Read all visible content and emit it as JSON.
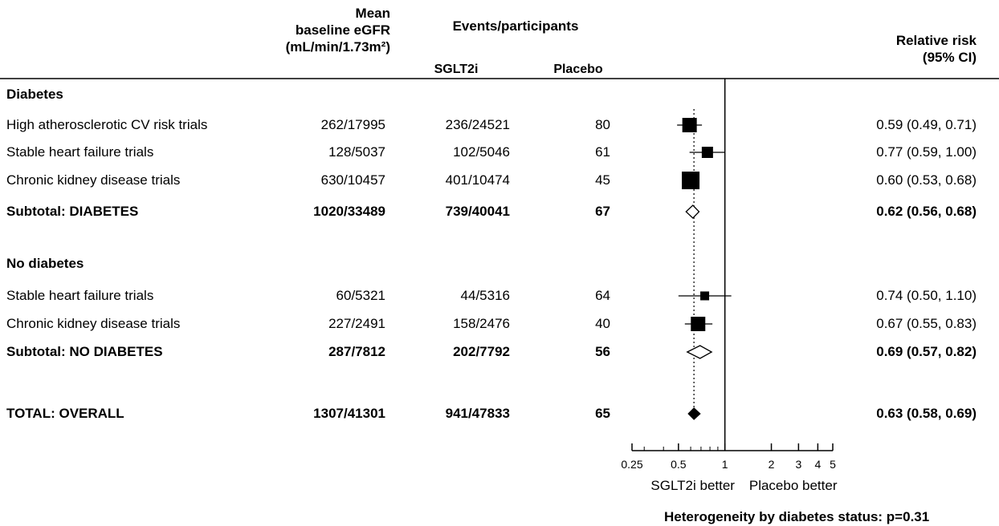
{
  "headers": {
    "egfr": [
      "Mean",
      "baseline eGFR",
      "(mL/min/1.73m²)"
    ],
    "events": "Events/participants",
    "sglt2i": "SGLT2i",
    "placebo": "Placebo",
    "rr": [
      "Relative risk",
      "(95% CI)"
    ]
  },
  "rows": [
    {
      "label": "Diabetes",
      "type": "group",
      "egfr": "",
      "sglt2i": "",
      "placebo": "",
      "ci_text": ""
    },
    {
      "label": "High atherosclerotic CV risk trials",
      "type": "study",
      "egfr": "80",
      "sglt2i": "236/24521",
      "placebo": "262/17995",
      "ci_text": "0.59 (0.49, 0.71)"
    },
    {
      "label": "Stable heart failure trials",
      "type": "study",
      "egfr": "61",
      "sglt2i": "102/5046",
      "placebo": "128/5037",
      "ci_text": "0.77 (0.59, 1.00)"
    },
    {
      "label": "Chronic kidney disease trials",
      "type": "study",
      "egfr": "45",
      "sglt2i": "401/10474",
      "placebo": "630/10457",
      "ci_text": "0.60 (0.53, 0.68)"
    },
    {
      "label": "Subtotal: DIABETES",
      "type": "subtotal",
      "egfr": "67",
      "sglt2i": "739/40041",
      "placebo": "1020/33489",
      "ci_text": "0.62 (0.56, 0.68)"
    },
    {
      "label": "No diabetes",
      "type": "group",
      "egfr": "",
      "sglt2i": "",
      "placebo": "",
      "ci_text": ""
    },
    {
      "label": "Stable heart failure trials",
      "type": "study",
      "egfr": "64",
      "sglt2i": "44/5316",
      "placebo": "60/5321",
      "ci_text": "0.74 (0.50, 1.10)"
    },
    {
      "label": "Chronic kidney disease trials",
      "type": "study",
      "egfr": "40",
      "sglt2i": "158/2476",
      "placebo": "227/2491",
      "ci_text": "0.67 (0.55, 0.83)"
    },
    {
      "label": "Subtotal: NO DIABETES",
      "type": "subtotal",
      "egfr": "56",
      "sglt2i": "202/7792",
      "placebo": "287/7812",
      "ci_text": "0.69 (0.57, 0.82)"
    },
    {
      "label": "TOTAL: OVERALL",
      "type": "total",
      "egfr": "65",
      "sglt2i": "941/47833",
      "placebo": "1307/41301",
      "ci_text": "0.63 (0.58, 0.69)"
    }
  ],
  "chart_data": {
    "type": "forest",
    "x_scale": "log",
    "xlim": [
      0.25,
      5
    ],
    "xticks": [
      0.25,
      0.5,
      1,
      2,
      3,
      4,
      5
    ],
    "xtick_labels": [
      "0.25",
      "0.5",
      "1",
      "2",
      "3",
      "4",
      "5"
    ],
    "minor_ticks": [
      0.3,
      0.4,
      0.6,
      0.7,
      0.8,
      0.9
    ],
    "reference_line": 1,
    "overall_estimate_line": 0.63,
    "direction_labels": {
      "left": "SGLT2i better",
      "right": "Placebo better"
    },
    "estimates": [
      {
        "row": 1,
        "rr": 0.59,
        "lo": 0.49,
        "hi": 0.71,
        "marker": "square",
        "size": "large"
      },
      {
        "row": 2,
        "rr": 0.77,
        "lo": 0.59,
        "hi": 1.0,
        "marker": "square",
        "size": "medium"
      },
      {
        "row": 3,
        "rr": 0.6,
        "lo": 0.53,
        "hi": 0.68,
        "marker": "square",
        "size": "xlarge"
      },
      {
        "row": 4,
        "rr": 0.62,
        "lo": 0.56,
        "hi": 0.68,
        "marker": "diamond-open"
      },
      {
        "row": 6,
        "rr": 0.74,
        "lo": 0.5,
        "hi": 1.1,
        "marker": "square",
        "size": "small"
      },
      {
        "row": 7,
        "rr": 0.67,
        "lo": 0.55,
        "hi": 0.83,
        "marker": "square",
        "size": "large"
      },
      {
        "row": 8,
        "rr": 0.69,
        "lo": 0.57,
        "hi": 0.82,
        "marker": "diamond-open"
      },
      {
        "row": 9,
        "rr": 0.63,
        "lo": 0.58,
        "hi": 0.69,
        "marker": "diamond-filled"
      }
    ]
  },
  "footnote": "Heterogeneity by diabetes status: p=0.31"
}
